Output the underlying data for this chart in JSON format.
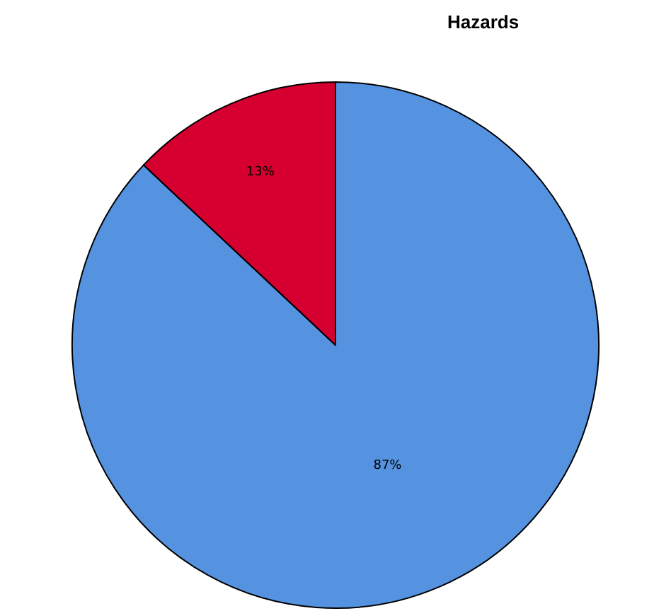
{
  "chart_data": {
    "type": "pie",
    "title": "Hazards",
    "categories": [
      null,
      null
    ],
    "values": [
      87,
      13
    ],
    "value_labels": [
      "87%",
      "13%"
    ],
    "colors": [
      "#5592e0",
      "#d5002f"
    ],
    "legend": false
  }
}
